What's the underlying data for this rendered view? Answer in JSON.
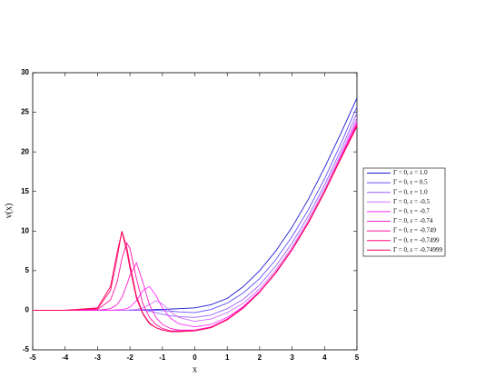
{
  "chart_data": {
    "type": "line",
    "xlabel": "x",
    "ylabel": "v(x)",
    "x": [
      -5,
      -4,
      -3,
      -2.6,
      -2.4,
      -2.25,
      -2.1,
      -2,
      -1.8,
      -1.6,
      -1.4,
      -1.2,
      -1,
      -0.75,
      -0.5,
      0,
      0.5,
      1,
      1.5,
      2,
      2.5,
      3,
      3.5,
      4,
      4.5,
      5
    ],
    "xlim": [
      -5,
      5
    ],
    "xticks": [
      -5,
      -4,
      -3,
      -2,
      -1,
      0,
      1,
      2,
      3,
      4,
      5
    ],
    "ylim": [
      -5,
      30
    ],
    "yticks": [
      -5,
      0,
      5,
      10,
      15,
      20,
      25,
      30
    ],
    "legend": "right",
    "series": [
      {
        "name": "Γ = 0, ε = 1.0",
        "color": "#1a1ad6",
        "values": [
          0,
          0,
          0,
          0,
          0,
          0,
          0,
          0,
          0,
          0.05,
          0.05,
          0.1,
          0.1,
          0.15,
          0.2,
          0.3,
          0.7,
          1.5,
          3,
          5,
          7.5,
          10.5,
          14,
          18,
          22.3,
          26.8
        ]
      },
      {
        "name": "Γ = 0, ε = 0.5",
        "color": "#6050ff",
        "values": [
          0,
          0,
          0,
          0,
          0,
          0,
          0,
          0,
          0,
          0,
          0,
          0,
          -0.05,
          -0.1,
          -0.2,
          -0.3,
          0.1,
          0.9,
          2.2,
          4.0,
          6.4,
          9.3,
          12.7,
          16.6,
          21.0,
          25.7
        ]
      },
      {
        "name": "Γ = 0, ε = 1.0",
        "color": "#9a60ff",
        "values": [
          0,
          0,
          0,
          0,
          0,
          0,
          0,
          0,
          0,
          0,
          -0.1,
          -0.3,
          -0.5,
          -0.7,
          -0.8,
          -0.9,
          -0.6,
          0.2,
          1.4,
          3.2,
          5.6,
          8.5,
          11.9,
          15.8,
          20.2,
          24.9
        ]
      },
      {
        "name": "Γ = 0, ε = -0.5",
        "color": "#d070ff",
        "values": [
          0,
          0,
          0,
          0,
          0,
          0,
          0,
          0.05,
          0.1,
          0.3,
          0.7,
          1.2,
          0.8,
          -0.2,
          -0.9,
          -1.4,
          -1.1,
          -0.3,
          0.9,
          2.7,
          5.1,
          8.0,
          11.4,
          15.3,
          19.7,
          24.3
        ]
      },
      {
        "name": "Γ = 0, ε = -0.7",
        "color": "#ff30ff",
        "values": [
          0,
          0,
          0,
          0,
          0.05,
          0.1,
          0.2,
          0.4,
          1.2,
          2.5,
          3.0,
          1.9,
          0.3,
          -1.0,
          -1.7,
          -2.1,
          -1.8,
          -0.9,
          0.5,
          2.4,
          4.8,
          7.7,
          11.1,
          15.0,
          19.4,
          23.9
        ]
      },
      {
        "name": "Γ = 0, ε = -0.74",
        "color": "#ff20d0",
        "values": [
          0,
          0,
          0,
          0.2,
          0.7,
          1.6,
          3.2,
          4.4,
          6.0,
          3.5,
          0.7,
          -0.9,
          -1.8,
          -2.3,
          -2.5,
          -2.5,
          -2.1,
          -1.1,
          0.4,
          2.3,
          4.7,
          7.6,
          11.0,
          14.9,
          19.2,
          23.6
        ]
      },
      {
        "name": "Γ = 0, ε = -0.749",
        "color": "#ff10a0",
        "values": [
          0,
          0,
          0.1,
          1.3,
          3.5,
          6.5,
          8.5,
          7.8,
          4.0,
          0.8,
          -0.9,
          -1.8,
          -2.3,
          -2.6,
          -2.6,
          -2.6,
          -2.2,
          -1.2,
          0.3,
          2.3,
          4.8,
          7.7,
          11.1,
          15.0,
          19.3,
          23.4
        ]
      },
      {
        "name": "Γ = 0, ε = -0.7499",
        "color": "#ff0878",
        "values": [
          0,
          0,
          0.2,
          2.5,
          6.5,
          10.0,
          8.0,
          5.8,
          1.8,
          -0.4,
          -1.6,
          -2.2,
          -2.5,
          -2.7,
          -2.7,
          -2.6,
          -2.2,
          -1.2,
          0.3,
          2.3,
          4.8,
          7.7,
          11.1,
          15.0,
          19.2,
          23.3
        ]
      },
      {
        "name": "Γ = 0, ε = -0.74999",
        "color": "#ff0050",
        "values": [
          0,
          0,
          0.3,
          3.0,
          7.2,
          9.9,
          7.5,
          5.3,
          1.5,
          -0.5,
          -1.7,
          -2.2,
          -2.5,
          -2.7,
          -2.7,
          -2.6,
          -2.2,
          -1.2,
          0.3,
          2.3,
          4.8,
          7.7,
          11.0,
          14.9,
          19.1,
          23.2
        ]
      }
    ]
  }
}
